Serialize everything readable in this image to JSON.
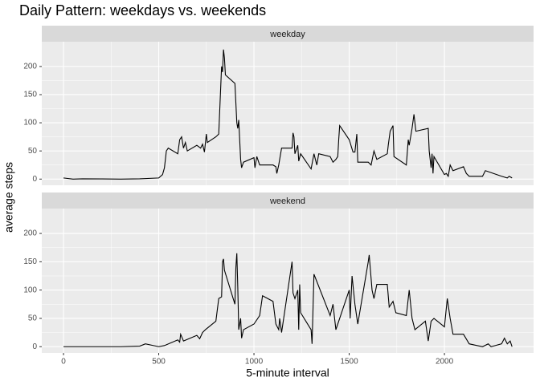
{
  "chart_data": [
    {
      "type": "line",
      "title": "Daily Pattern: weekdays vs. weekends",
      "x_label": "5-minute interval",
      "y_label": "average steps",
      "strip": "weekday",
      "color": "#000000",
      "grid": true,
      "xlim": [
        -114,
        2468
      ],
      "ylim": [
        -11,
        244
      ],
      "xticks": [
        0,
        500,
        1000,
        1500,
        2000
      ],
      "yticks": [
        0,
        50,
        100,
        150,
        200
      ],
      "x": [
        0,
        50,
        100,
        200,
        300,
        400,
        500,
        520,
        530,
        540,
        550,
        600,
        610,
        620,
        630,
        640,
        650,
        700,
        720,
        730,
        740,
        750,
        755,
        800,
        815,
        830,
        835,
        840,
        845,
        850,
        900,
        910,
        915,
        920,
        930,
        935,
        945,
        1000,
        1005,
        1015,
        1030,
        1045,
        1100,
        1115,
        1120,
        1130,
        1145,
        1200,
        1205,
        1210,
        1215,
        1230,
        1235,
        1245,
        1300,
        1315,
        1330,
        1340,
        1400,
        1415,
        1430,
        1440,
        1445,
        1450,
        1500,
        1520,
        1530,
        1540,
        1545,
        1600,
        1615,
        1630,
        1645,
        1700,
        1705,
        1715,
        1730,
        1735,
        1800,
        1810,
        1815,
        1830,
        1840,
        1850,
        1915,
        1920,
        1930,
        1935,
        1940,
        1945,
        2000,
        2010,
        2020,
        2030,
        2045,
        2100,
        2115,
        2130,
        2200,
        2215,
        2300,
        2330,
        2340,
        2355
      ],
      "values": [
        2,
        0,
        0.5,
        0.3,
        0,
        0.5,
        2,
        8,
        20,
        50,
        55,
        45,
        70,
        75,
        55,
        65,
        50,
        60,
        55,
        62,
        48,
        80,
        65,
        75,
        80,
        200,
        190,
        230,
        215,
        185,
        170,
        100,
        90,
        105,
        35,
        20,
        30,
        38,
        20,
        40,
        25,
        25,
        25,
        22,
        10,
        25,
        55,
        55,
        82,
        75,
        45,
        60,
        32,
        45,
        18,
        45,
        25,
        45,
        40,
        30,
        35,
        40,
        70,
        95,
        70,
        48,
        48,
        80,
        30,
        30,
        25,
        50,
        35,
        45,
        60,
        85,
        95,
        40,
        25,
        70,
        60,
        90,
        115,
        85,
        90,
        50,
        20,
        45,
        10,
        40,
        8,
        10,
        5,
        25,
        15,
        22,
        10,
        5,
        5,
        15,
        5,
        2,
        5,
        2
      ]
    },
    {
      "type": "line",
      "strip": "weekend",
      "color": "#000000",
      "grid": true,
      "xlim": [
        -114,
        2468
      ],
      "ylim": [
        -11,
        244
      ],
      "yticks": [
        0,
        50,
        100,
        150,
        200
      ],
      "x": [
        0,
        100,
        300,
        400,
        430,
        500,
        530,
        600,
        610,
        615,
        630,
        700,
        715,
        730,
        745,
        800,
        815,
        830,
        835,
        840,
        845,
        900,
        905,
        910,
        915,
        920,
        930,
        935,
        945,
        1000,
        1030,
        1045,
        1100,
        1115,
        1130,
        1135,
        1145,
        1200,
        1205,
        1215,
        1230,
        1235,
        1240,
        1245,
        1300,
        1305,
        1315,
        1400,
        1415,
        1430,
        1500,
        1505,
        1515,
        1530,
        1545,
        1600,
        1605,
        1620,
        1630,
        1645,
        1700,
        1710,
        1730,
        1745,
        1800,
        1815,
        1830,
        1845,
        1900,
        1915,
        1930,
        1945,
        2000,
        2015,
        2030,
        2045,
        2100,
        2130,
        2200,
        2230,
        2245,
        2300,
        2315,
        2330,
        2345,
        2355
      ],
      "values": [
        0,
        0,
        0,
        1,
        5,
        0,
        2,
        12,
        8,
        22,
        10,
        20,
        14,
        25,
        30,
        45,
        85,
        88,
        150,
        155,
        135,
        75,
        140,
        165,
        105,
        30,
        50,
        15,
        30,
        40,
        55,
        90,
        80,
        40,
        30,
        50,
        25,
        150,
        95,
        85,
        100,
        30,
        110,
        60,
        30,
        5,
        128,
        55,
        75,
        30,
        100,
        50,
        125,
        75,
        40,
        150,
        162,
        100,
        85,
        110,
        110,
        70,
        80,
        60,
        55,
        100,
        50,
        30,
        45,
        10,
        45,
        50,
        35,
        85,
        50,
        22,
        22,
        5,
        0,
        5,
        0,
        5,
        15,
        5,
        10,
        0
      ]
    }
  ]
}
